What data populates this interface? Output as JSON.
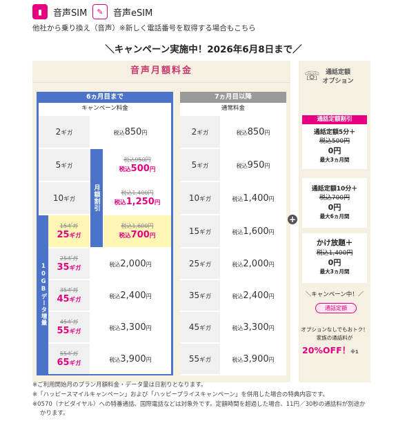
{
  "tabs": [
    {
      "icon": "sim-card-icon",
      "label": "音声SIM"
    },
    {
      "icon": "esim-icon",
      "label": "音声eSIM"
    }
  ],
  "subtitle": "他社から乗り換え（音声）※新しく電話番号を取得する場合もこちら",
  "campaign_banner": "＼キャンペーン実施中！2026年6月8日まで／",
  "plan_title": "音声月額料金",
  "col1": {
    "header": "6ヵ月目まで",
    "sub": "キャンペーン料金",
    "band_monthly": "月額割引",
    "band_data": "10GBデータ増量"
  },
  "col2": {
    "header": "7ヵ月目以降",
    "sub": "通常料金"
  },
  "rows": [
    {
      "gb": "2",
      "unit": "ギガ",
      "campaign_price": "850",
      "normal_gb": "2",
      "normal_price": "850"
    },
    {
      "gb": "5",
      "unit": "ギガ",
      "old_price": "税込950円",
      "campaign_price": "500",
      "normal_gb": "5",
      "normal_price": "950"
    },
    {
      "gb": "10",
      "unit": "ギガ",
      "old_price": "税込1,400円",
      "campaign_price": "1,250",
      "normal_gb": "10",
      "normal_price": "1,400"
    },
    {
      "old_gb": "15ギガ",
      "gb": "25",
      "unit": "ギガ",
      "old_price": "税込1,600円",
      "campaign_price": "700",
      "normal_gb": "15",
      "normal_price": "1,600"
    },
    {
      "old_gb": "25ギガ",
      "gb": "35",
      "unit": "ギガ",
      "campaign_price": "2,000",
      "normal_gb": "25",
      "normal_price": "2,000"
    },
    {
      "old_gb": "35ギガ",
      "gb": "45",
      "unit": "ギガ",
      "campaign_price": "2,400",
      "normal_gb": "35",
      "normal_price": "2,400"
    },
    {
      "old_gb": "45ギガ",
      "gb": "55",
      "unit": "ギガ",
      "campaign_price": "3,300",
      "normal_gb": "45",
      "normal_price": "3,300"
    },
    {
      "old_gb": "55ギガ",
      "gb": "65",
      "unit": "ギガ",
      "campaign_price": "3,900",
      "normal_gb": "55",
      "normal_price": "3,900"
    }
  ],
  "tax_label": "税込",
  "yen": "円",
  "options": {
    "icon": "phone-icon",
    "title_line1": "通話定額",
    "title_line2": "オプション",
    "card1_title": "通話定額割引",
    "cards": [
      {
        "name": "通話定額5分＋",
        "old": "税込500円",
        "price": "0円",
        "period": "最大3ヵ月間"
      },
      {
        "name": "通話定額10分＋",
        "old": "税込700円",
        "price": "0円",
        "period": "最大6ヵ月間"
      },
      {
        "name": "かけ放題＋",
        "old": "税込1,400円",
        "price": "0円",
        "period": "最大3ヵ月間"
      }
    ],
    "campaign_now": "＼キャンペーン中！／",
    "campaign_pill": "通話定額",
    "promo_line1": "オプションなしでもおトク！",
    "promo_line2": "家族の通話料が",
    "promo_big": "20%OFF！",
    "promo_note": "※1"
  },
  "notes": [
    "※ご利用開始月のプラン月額料金・データ量は日割りとなります。",
    "※「ハッピースマイルキャンペーン」および「ハッピープライスキャンペーン」を併用した場合の特典内容です。",
    "※0570（ナビダイヤル）への特番通話、国際電話などは対象外です。定額時間を超過した場合、11円／30秒の通話料が別途か",
    "かります。"
  ],
  "colors": {
    "accent": "#e4007f",
    "blue": "#4a73c9",
    "beige": "#f6f0e2",
    "highlight": "#fff6b6"
  }
}
